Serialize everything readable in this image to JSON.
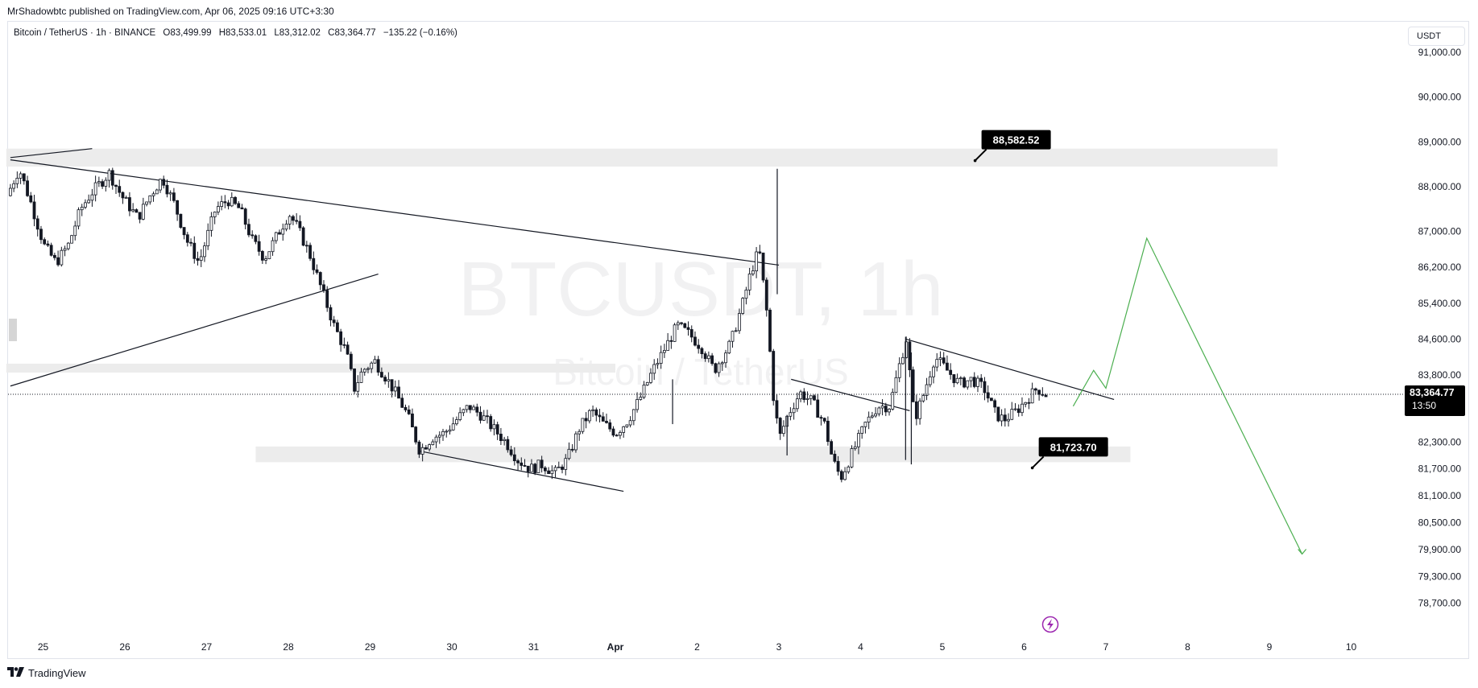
{
  "publisher": "MrShadowbtc published on TradingView.com, Apr 06, 2025 09:16 UTC+3:30",
  "legend": {
    "symbol": "Bitcoin / TetherUS · 1h · BINANCE",
    "open": "O83,499.99",
    "high": "H83,533.01",
    "low": "L83,312.02",
    "close": "C83,364.77",
    "change": "−135.22 (−0.16%)"
  },
  "currency": "USDT",
  "watermark": {
    "line1": "BTCUSDT, 1h",
    "line2": "Bitcoin / TetherUS"
  },
  "footer": {
    "brand": "TradingView",
    "logo": "tradingview-logo-icon"
  },
  "last_price": {
    "value": "83,364.77",
    "countdown": "13:50"
  },
  "callouts": [
    {
      "label": "88,582.52",
      "price": 88582.52
    },
    {
      "label": "81,723.70",
      "price": 81723.7
    }
  ],
  "icons": {
    "flash": "lightning-icon"
  },
  "colors": {
    "candle": "#131722",
    "projection": "#4caf50",
    "zone": "#ececec",
    "callout_bg": "#000000",
    "flash": "#9c27b0"
  },
  "chart_data": {
    "type": "candlestick",
    "title": "BTCUSDT, 1h",
    "subtitle": "Bitcoin / TetherUS",
    "xlabel": "",
    "ylabel": "",
    "x_ticks": [
      "25",
      "26",
      "27",
      "28",
      "29",
      "30",
      "31",
      "Apr",
      "2",
      "3",
      "4",
      "5",
      "6",
      "7",
      "8",
      "9",
      "10"
    ],
    "x_tick_values": [
      25,
      26,
      27,
      28,
      29,
      30,
      31,
      32,
      33,
      34,
      35,
      36,
      37,
      38,
      39,
      40,
      41
    ],
    "y_ticks": [
      "91,000.00",
      "90,000.00",
      "89,000.00",
      "88,000.00",
      "87,000.00",
      "86,200.00",
      "85,400.00",
      "84,600.00",
      "83,800.00",
      "82,300.00",
      "81,700.00",
      "81,100.00",
      "80,500.00",
      "79,900.00",
      "79,300.00",
      "78,700.00"
    ],
    "y_tick_values": [
      91000,
      90000,
      89000,
      88000,
      87000,
      86200,
      85400,
      84600,
      83800,
      82300,
      81700,
      81100,
      80500,
      79900,
      79300,
      78700
    ],
    "xlim": [
      24.55,
      42.0
    ],
    "ylim": [
      77900,
      91200
    ],
    "grid": false,
    "price_path": [
      [
        24.6,
        87800
      ],
      [
        24.75,
        88400
      ],
      [
        24.9,
        87600
      ],
      [
        25.05,
        86700
      ],
      [
        25.2,
        86300
      ],
      [
        25.35,
        86700
      ],
      [
        25.5,
        87500
      ],
      [
        25.65,
        87900
      ],
      [
        25.85,
        88300
      ],
      [
        26.0,
        87800
      ],
      [
        26.2,
        87300
      ],
      [
        26.35,
        87800
      ],
      [
        26.5,
        88200
      ],
      [
        26.65,
        87600
      ],
      [
        26.8,
        86800
      ],
      [
        26.95,
        86300
      ],
      [
        27.05,
        86900
      ],
      [
        27.15,
        87500
      ],
      [
        27.3,
        87700
      ],
      [
        27.45,
        87500
      ],
      [
        27.6,
        86800
      ],
      [
        27.75,
        86400
      ],
      [
        27.9,
        86900
      ],
      [
        28.05,
        87400
      ],
      [
        28.15,
        87100
      ],
      [
        28.3,
        86500
      ],
      [
        28.45,
        85700
      ],
      [
        28.6,
        84900
      ],
      [
        28.75,
        84300
      ],
      [
        28.85,
        83500
      ],
      [
        28.95,
        83900
      ],
      [
        29.1,
        84100
      ],
      [
        29.25,
        83700
      ],
      [
        29.35,
        83400
      ],
      [
        29.5,
        82900
      ],
      [
        29.65,
        82100
      ],
      [
        29.8,
        82400
      ],
      [
        29.95,
        82500
      ],
      [
        30.1,
        82800
      ],
      [
        30.25,
        83100
      ],
      [
        30.4,
        82900
      ],
      [
        30.55,
        82600
      ],
      [
        30.7,
        82300
      ],
      [
        30.85,
        81900
      ],
      [
        31.0,
        81700
      ],
      [
        31.15,
        81800
      ],
      [
        31.3,
        81600
      ],
      [
        31.45,
        81900
      ],
      [
        31.6,
        82600
      ],
      [
        31.75,
        83000
      ],
      [
        31.9,
        82700
      ],
      [
        32.05,
        82500
      ],
      [
        32.2,
        82800
      ],
      [
        32.35,
        83300
      ],
      [
        32.5,
        83900
      ],
      [
        32.65,
        84400
      ],
      [
        32.8,
        84900
      ],
      [
        32.95,
        84700
      ],
      [
        33.1,
        84400
      ],
      [
        33.25,
        83900
      ],
      [
        33.45,
        84500
      ],
      [
        33.6,
        85400
      ],
      [
        33.7,
        86100
      ],
      [
        33.8,
        86600
      ],
      [
        33.9,
        85100
      ],
      [
        33.98,
        83200
      ],
      [
        34.05,
        82400
      ],
      [
        34.15,
        82900
      ],
      [
        34.3,
        83400
      ],
      [
        34.45,
        83200
      ],
      [
        34.6,
        82700
      ],
      [
        34.7,
        81900
      ],
      [
        34.8,
        81500
      ],
      [
        34.9,
        81900
      ],
      [
        35.0,
        82300
      ],
      [
        35.1,
        82700
      ],
      [
        35.25,
        83100
      ],
      [
        35.4,
        83100
      ],
      [
        35.5,
        83900
      ],
      [
        35.6,
        84600
      ],
      [
        35.7,
        82800
      ],
      [
        35.8,
        83300
      ],
      [
        35.95,
        84200
      ],
      [
        36.1,
        83900
      ],
      [
        36.25,
        83600
      ],
      [
        36.4,
        83700
      ],
      [
        36.55,
        83500
      ],
      [
        36.7,
        82900
      ],
      [
        36.8,
        82800
      ],
      [
        36.95,
        83000
      ],
      [
        37.1,
        83300
      ],
      [
        37.2,
        83500
      ],
      [
        37.3,
        83364.77
      ]
    ],
    "markers": [
      {
        "label": "88,582.52",
        "x": 36.4,
        "y": 88582.52
      },
      {
        "label": "81,723.70",
        "x": 37.1,
        "y": 81723.7
      }
    ],
    "zones": [
      {
        "y_top": 88850,
        "y_bottom": 88450,
        "x_start": 24.55,
        "x_end": 40.1
      },
      {
        "y_top": 84050,
        "y_bottom": 83850,
        "x_start": 24.55,
        "x_end": 32.0
      },
      {
        "y_top": 82200,
        "y_bottom": 81850,
        "x_start": 27.6,
        "x_end": 38.3
      }
    ],
    "trendlines": [
      [
        [
          24.6,
          88650
        ],
        [
          25.6,
          88850
        ]
      ],
      [
        [
          24.6,
          88600
        ],
        [
          34.0,
          86250
        ]
      ],
      [
        [
          24.6,
          83550
        ],
        [
          29.1,
          86050
        ]
      ],
      [
        [
          29.6,
          82100
        ],
        [
          32.1,
          81200
        ]
      ],
      [
        [
          34.15,
          83700
        ],
        [
          35.6,
          83000
        ]
      ],
      [
        [
          35.55,
          84600
        ],
        [
          38.1,
          83250
        ]
      ]
    ],
    "projection": [
      [
        37.6,
        83100
      ],
      [
        37.85,
        83900
      ],
      [
        38.0,
        83500
      ],
      [
        38.5,
        86850
      ],
      [
        40.4,
        79800
      ]
    ],
    "current_price": 83364.77,
    "legend_position": "top-left"
  }
}
